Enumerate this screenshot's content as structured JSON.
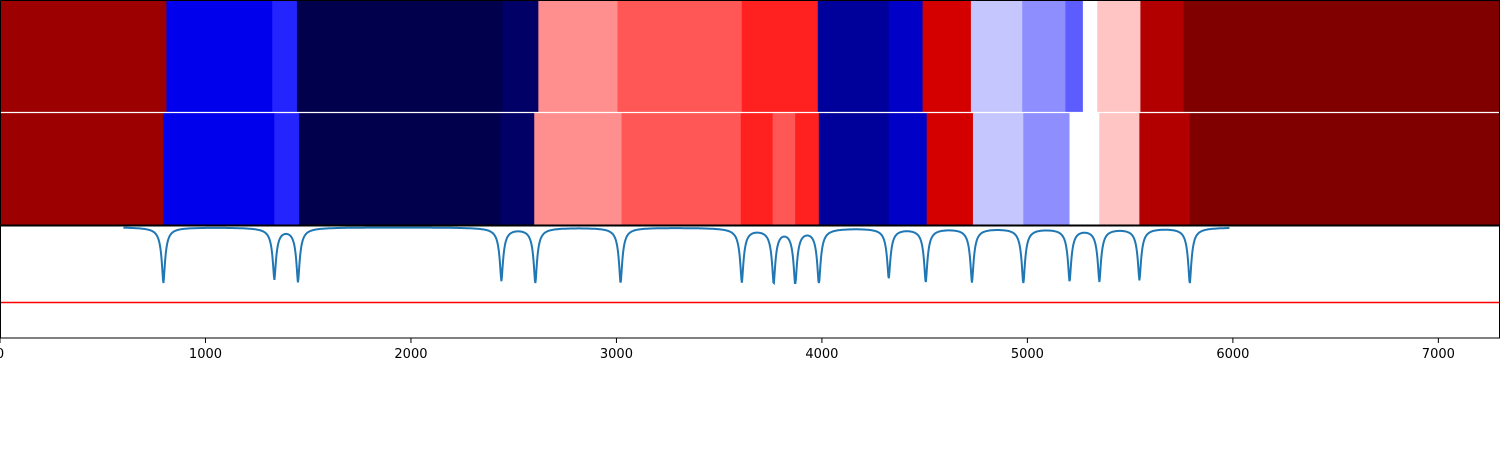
{
  "chart_data": {
    "type": "heatmap",
    "title": "",
    "xlabel": "",
    "ylabel": "",
    "xlim": [
      0,
      7300
    ],
    "x_ticks": [
      0,
      1000,
      2000,
      3000,
      4000,
      5000,
      6000,
      7000
    ],
    "x_tick_labels": [
      "0",
      "1000",
      "2000",
      "3000",
      "4000",
      "5000",
      "6000",
      "7000"
    ],
    "rows": [
      {
        "segments": [
          {
            "start": 0,
            "end": 810,
            "color": "#9c0000"
          },
          {
            "start": 810,
            "end": 1325,
            "color": "#0000ec"
          },
          {
            "start": 1325,
            "end": 1445,
            "color": "#2424ff"
          },
          {
            "start": 1445,
            "end": 2445,
            "color": "#00004c"
          },
          {
            "start": 2445,
            "end": 2620,
            "color": "#000066"
          },
          {
            "start": 2620,
            "end": 3005,
            "color": "#ff8e8e"
          },
          {
            "start": 3005,
            "end": 3610,
            "color": "#ff5656"
          },
          {
            "start": 3610,
            "end": 3980,
            "color": "#ff2020"
          },
          {
            "start": 3980,
            "end": 4325,
            "color": "#00009a"
          },
          {
            "start": 4325,
            "end": 4490,
            "color": "#0000c6"
          },
          {
            "start": 4490,
            "end": 4725,
            "color": "#d40000"
          },
          {
            "start": 4725,
            "end": 4975,
            "color": "#c6c6ff"
          },
          {
            "start": 4975,
            "end": 5185,
            "color": "#8e8eff"
          },
          {
            "start": 5185,
            "end": 5270,
            "color": "#5c5cff"
          },
          {
            "start": 5270,
            "end": 5340,
            "color": "#ffffff"
          },
          {
            "start": 5340,
            "end": 5550,
            "color": "#ffc4c4"
          },
          {
            "start": 5550,
            "end": 5760,
            "color": "#b20000"
          },
          {
            "start": 5760,
            "end": 7300,
            "color": "#800000"
          }
        ]
      },
      {
        "segments": [
          {
            "start": 0,
            "end": 795,
            "color": "#9c0000"
          },
          {
            "start": 795,
            "end": 1335,
            "color": "#0000ec"
          },
          {
            "start": 1335,
            "end": 1455,
            "color": "#2424ff"
          },
          {
            "start": 1455,
            "end": 2435,
            "color": "#00004c"
          },
          {
            "start": 2435,
            "end": 2600,
            "color": "#000066"
          },
          {
            "start": 2600,
            "end": 3025,
            "color": "#ff8e8e"
          },
          {
            "start": 3025,
            "end": 3605,
            "color": "#ff5656"
          },
          {
            "start": 3605,
            "end": 3760,
            "color": "#ff2020"
          },
          {
            "start": 3760,
            "end": 3870,
            "color": "#ff5656"
          },
          {
            "start": 3870,
            "end": 3985,
            "color": "#ff2020"
          },
          {
            "start": 3985,
            "end": 4325,
            "color": "#00009a"
          },
          {
            "start": 4325,
            "end": 4510,
            "color": "#0000c6"
          },
          {
            "start": 4510,
            "end": 4735,
            "color": "#d40000"
          },
          {
            "start": 4735,
            "end": 4980,
            "color": "#c6c6ff"
          },
          {
            "start": 4980,
            "end": 5205,
            "color": "#8e8eff"
          },
          {
            "start": 5205,
            "end": 5350,
            "color": "#ffffff"
          },
          {
            "start": 5350,
            "end": 5545,
            "color": "#ffc4c4"
          },
          {
            "start": 5545,
            "end": 5790,
            "color": "#b20000"
          },
          {
            "start": 5790,
            "end": 7300,
            "color": "#800000"
          }
        ]
      }
    ],
    "lower_panel": {
      "type": "line",
      "line_color": "#1f77b4",
      "dips": [
        {
          "x": 795,
          "depth": 1.0
        },
        {
          "x": 1335,
          "depth": 0.92
        },
        {
          "x": 1450,
          "depth": 0.97
        },
        {
          "x": 2440,
          "depth": 0.95
        },
        {
          "x": 2605,
          "depth": 1.0
        },
        {
          "x": 3020,
          "depth": 1.0
        },
        {
          "x": 3610,
          "depth": 0.97
        },
        {
          "x": 3765,
          "depth": 0.97
        },
        {
          "x": 3870,
          "depth": 1.0
        },
        {
          "x": 3985,
          "depth": 1.0
        },
        {
          "x": 4325,
          "depth": 0.9
        },
        {
          "x": 4505,
          "depth": 0.97
        },
        {
          "x": 4730,
          "depth": 0.97
        },
        {
          "x": 4980,
          "depth": 1.0
        },
        {
          "x": 5205,
          "depth": 0.95
        },
        {
          "x": 5350,
          "depth": 0.95
        },
        {
          "x": 5545,
          "depth": 0.93
        },
        {
          "x": 5790,
          "depth": 1.0
        }
      ],
      "threshold_color": "#ff0000"
    }
  }
}
